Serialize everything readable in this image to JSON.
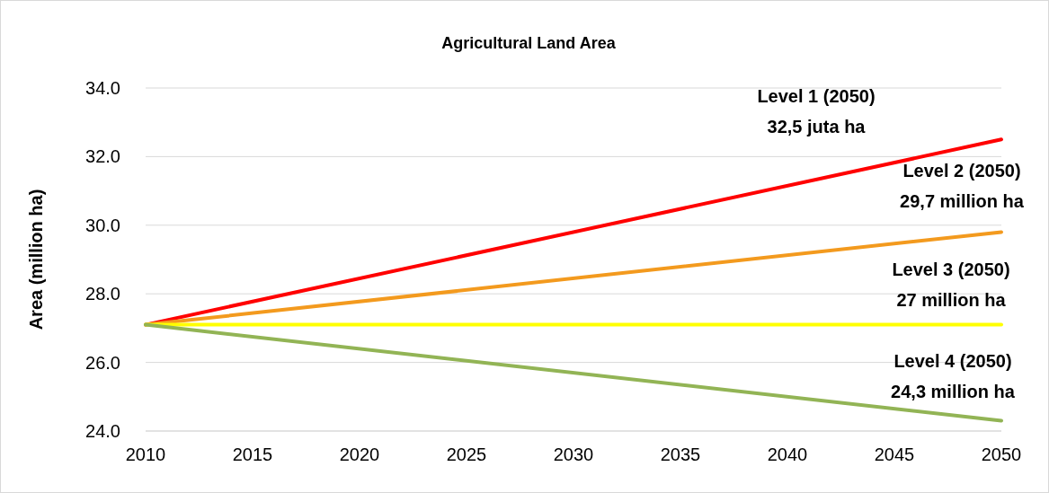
{
  "chart_data": {
    "type": "line",
    "title": "Agricultural Land Area",
    "ylabel": "Area (million ha)",
    "x": [
      2010,
      2050
    ],
    "series": [
      {
        "color": "#ff0000",
        "values": [
          27.1,
          32.5
        ]
      },
      {
        "color": "#f39a1e",
        "values": [
          27.1,
          29.8
        ]
      },
      {
        "color": "#ffff00",
        "values": [
          27.1,
          27.1
        ]
      },
      {
        "color": "#92b455",
        "values": [
          27.1,
          24.3
        ]
      }
    ],
    "xlim": [
      2010,
      2050
    ],
    "xticks": [
      2010,
      2015,
      2020,
      2025,
      2030,
      2035,
      2040,
      2045,
      2050
    ],
    "ylim": [
      24,
      34
    ],
    "yticks": [
      {
        "value": 24,
        "label": "24.0"
      },
      {
        "value": 26,
        "label": "26.0"
      },
      {
        "value": 28,
        "label": "28.0"
      },
      {
        "value": 30,
        "label": "30.0"
      },
      {
        "value": 32,
        "label": "32.0"
      },
      {
        "value": 34,
        "label": "34.0"
      }
    ],
    "grid": "y",
    "marker": "none",
    "line_style": "solid",
    "annotations": [
      "Level 1 (2050)\n32,5 juta ha",
      "Level 2 (2050)\n29,7 million ha",
      "Level 3 (2050)\n27 million ha",
      "Level 4 (2050)\n24,3 million ha"
    ]
  }
}
